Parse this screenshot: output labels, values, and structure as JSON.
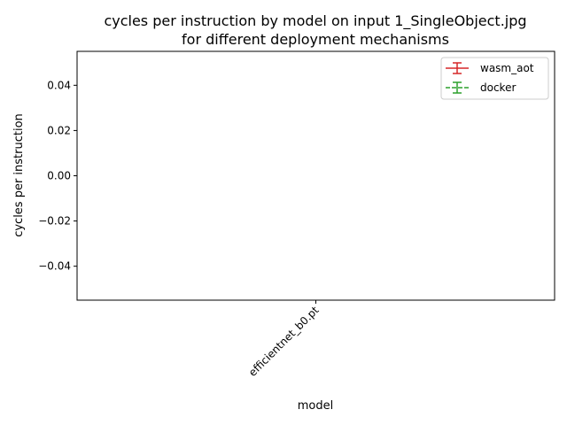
{
  "chart_data": {
    "type": "line",
    "title_line1": "cycles per instruction by model on input 1_SingleObject.jpg",
    "title_line2": "for different deployment mechanisms",
    "xlabel": "model",
    "ylabel": "cycles per instruction",
    "categories": [
      "efficientnet_b0.pt"
    ],
    "yticks": [
      -0.04,
      -0.02,
      0.0,
      0.02,
      0.04
    ],
    "ytick_labels": [
      "−0.04",
      "−0.02",
      "0.00",
      "0.02",
      "0.04"
    ],
    "ylim": [
      -0.055,
      0.055
    ],
    "grid": false,
    "legend_position": "top-right",
    "series": [
      {
        "name": "wasm_aot",
        "color": "#d62728",
        "linestyle": "solid",
        "values": [
          null
        ]
      },
      {
        "name": "docker",
        "color": "#2ca02c",
        "linestyle": "dashed",
        "values": [
          null
        ]
      }
    ]
  }
}
